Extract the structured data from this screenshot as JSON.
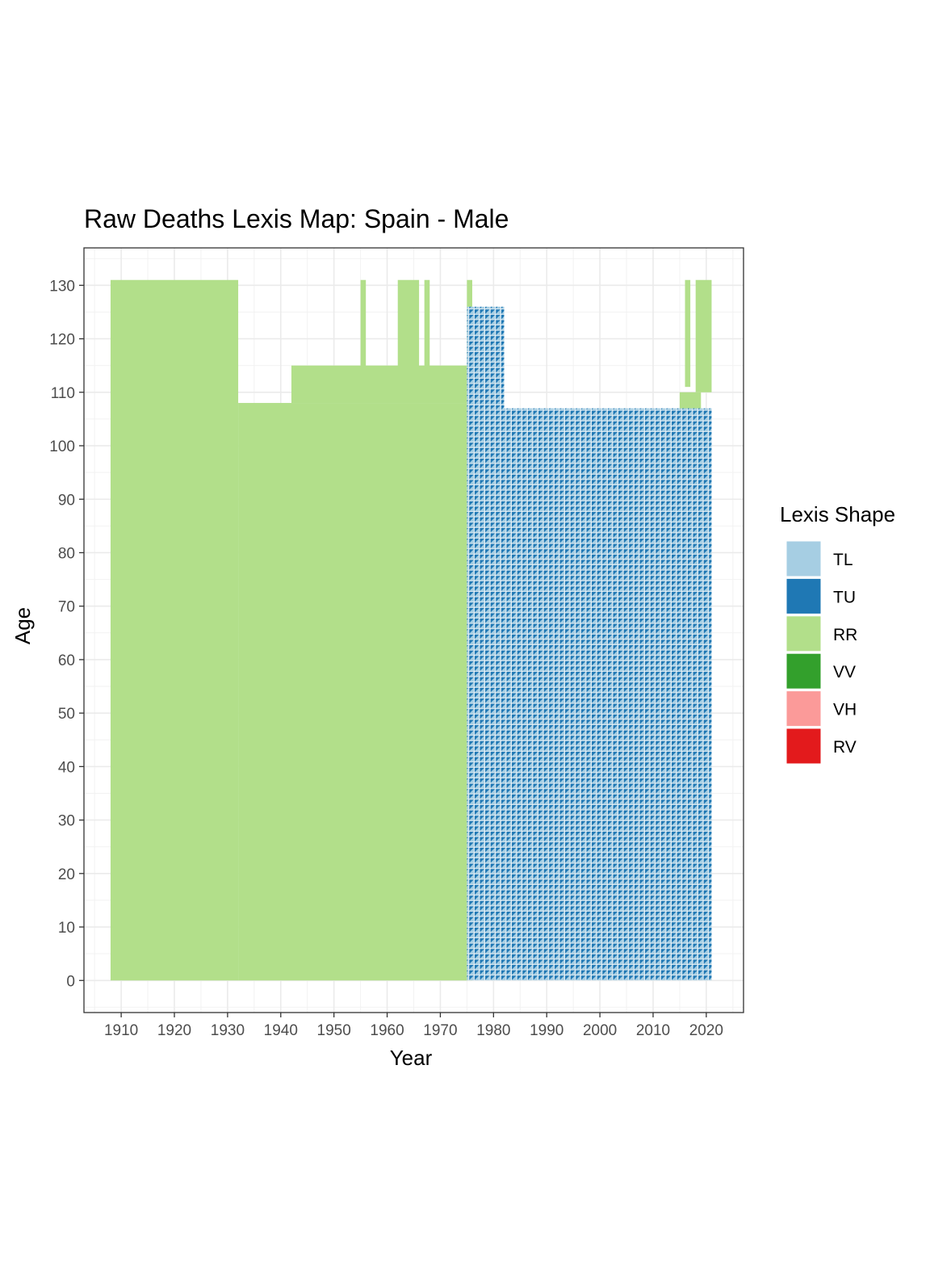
{
  "chart_data": {
    "type": "heatmap",
    "title": "Raw Deaths Lexis Map: Spain - Male",
    "xlabel": "Year",
    "ylabel": "Age",
    "xlim": [
      1903,
      2027
    ],
    "ylim": [
      -6,
      137
    ],
    "x_ticks": [
      1910,
      1920,
      1930,
      1940,
      1950,
      1960,
      1970,
      1980,
      1990,
      2000,
      2010,
      2020
    ],
    "y_ticks": [
      0,
      10,
      20,
      30,
      40,
      50,
      60,
      70,
      80,
      90,
      100,
      110,
      120,
      130
    ],
    "grid": true,
    "legend": {
      "title": "Lexis Shape",
      "placement": "right",
      "entries": [
        {
          "label": "TL",
          "color": "#A6CEE3"
        },
        {
          "label": "TU",
          "color": "#1F78B4"
        },
        {
          "label": "RR",
          "color": "#B2DF8A"
        },
        {
          "label": "VV",
          "color": "#33A02C"
        },
        {
          "label": "VH",
          "color": "#FB9A99"
        },
        {
          "label": "RV",
          "color": "#E31A1C"
        }
      ]
    },
    "regions": [
      {
        "shape": "RR",
        "years": [
          1908,
          1932
        ],
        "ages": [
          0,
          131
        ]
      },
      {
        "shape": "RR",
        "years": [
          1932,
          1975
        ],
        "ages": [
          0,
          108
        ]
      },
      {
        "shape": "RR",
        "years": [
          1975,
          1976
        ],
        "ages": [
          0,
          131
        ]
      },
      {
        "shape": "RR",
        "years": [
          1955,
          1956
        ],
        "ages": [
          108,
          131
        ]
      },
      {
        "shape": "RR",
        "years": [
          1962,
          1966
        ],
        "ages": [
          108,
          131
        ]
      },
      {
        "shape": "RR",
        "years": [
          1967,
          1968
        ],
        "ages": [
          108,
          131
        ]
      },
      {
        "shape": "RR",
        "years": [
          1942,
          1975
        ],
        "ages": [
          108,
          115
        ]
      },
      {
        "shape": "RR",
        "years": [
          2015,
          2019
        ],
        "ages": [
          105,
          110
        ]
      },
      {
        "shape": "RR",
        "years": [
          2016,
          2017
        ],
        "ages": [
          111,
          131
        ]
      },
      {
        "shape": "RR",
        "years": [
          2018,
          2021
        ],
        "ages": [
          110,
          131
        ]
      },
      {
        "shape": "TU/TL",
        "years": [
          1975,
          2021
        ],
        "ages": [
          0,
          107
        ]
      },
      {
        "shape": "TU/TL",
        "years": [
          1975,
          1982
        ],
        "ages": [
          107,
          126
        ]
      }
    ]
  }
}
